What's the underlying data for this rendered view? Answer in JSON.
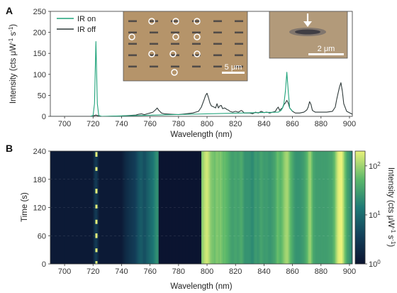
{
  "chart_data": [
    {
      "panel": "A",
      "type": "line",
      "xlabel": "Wavelength (nm)",
      "ylabel_main": "Intensity (cts μW",
      "ylabel_sup1": "-1",
      "ylabel_mid": " s",
      "ylabel_sup2": "-1",
      "ylabel_end": ")",
      "xlim": [
        690,
        902
      ],
      "ylim": [
        0,
        250
      ],
      "xticks": [
        700,
        720,
        740,
        760,
        780,
        800,
        820,
        840,
        860,
        880,
        900
      ],
      "yticks": [
        0,
        50,
        100,
        150,
        200,
        250
      ],
      "legend": {
        "position": "top-left",
        "entries": [
          "IR on",
          "IR off"
        ]
      },
      "colors": {
        "ir_on": "#1fa37a",
        "ir_off": "#2f3a3a"
      },
      "series": [
        {
          "name": "IR off",
          "x": [
            690,
            700,
            710,
            718,
            720,
            721,
            722,
            723,
            724,
            726,
            730,
            740,
            750,
            752,
            754,
            756,
            758,
            760,
            762,
            764,
            765,
            766,
            768,
            770,
            775,
            780,
            785,
            790,
            794,
            796,
            798,
            799,
            800,
            801,
            802,
            803,
            805,
            806,
            807,
            808,
            809,
            810,
            811,
            812,
            813,
            814,
            815,
            816,
            818,
            820,
            822,
            824,
            825,
            826,
            828,
            830,
            832,
            834,
            836,
            838,
            840,
            842,
            844,
            846,
            848,
            849,
            850,
            851,
            852,
            853,
            854,
            855,
            856,
            857,
            858,
            860,
            862,
            865,
            868,
            870,
            871,
            872,
            873,
            874,
            876,
            880,
            884,
            888,
            890,
            891,
            892,
            893,
            894,
            895,
            896,
            898,
            902
          ],
          "y": [
            0,
            0,
            0,
            0,
            1,
            2,
            3,
            2,
            1,
            0,
            0,
            1,
            3,
            5,
            6,
            4,
            6,
            8,
            10,
            16,
            20,
            15,
            8,
            6,
            5,
            4,
            6,
            8,
            12,
            22,
            40,
            50,
            55,
            45,
            32,
            25,
            22,
            20,
            30,
            20,
            25,
            26,
            18,
            20,
            19,
            16,
            15,
            12,
            10,
            12,
            10,
            14,
            12,
            8,
            8,
            8,
            6,
            10,
            8,
            12,
            9,
            10,
            8,
            10,
            12,
            18,
            22,
            14,
            18,
            20,
            28,
            32,
            38,
            32,
            20,
            12,
            8,
            8,
            10,
            15,
            22,
            35,
            28,
            14,
            10,
            10,
            10,
            12,
            22,
            40,
            55,
            70,
            80,
            60,
            30,
            12,
            5
          ]
        },
        {
          "name": "IR on",
          "x": [
            718,
            720,
            721,
            722,
            723,
            724,
            726,
            850,
            852,
            853,
            854,
            855,
            856,
            857,
            858,
            860
          ],
          "y": [
            0,
            2,
            30,
            178,
            30,
            2,
            0,
            10,
            14,
            20,
            30,
            60,
            105,
            60,
            20,
            12
          ]
        }
      ],
      "insets": [
        {
          "name": "array-image",
          "scale_bar_label": "5 μm"
        },
        {
          "name": "single-emitter-image",
          "scale_bar_label": "2 μm"
        }
      ]
    },
    {
      "panel": "B",
      "type": "heatmap",
      "xlabel": "Wavelength (nm)",
      "ylabel": "Time (s)",
      "xlim": [
        690,
        902
      ],
      "ylim": [
        0,
        240
      ],
      "xticks": [
        700,
        720,
        740,
        760,
        780,
        800,
        820,
        840,
        860,
        880,
        900
      ],
      "yticks": [
        0,
        60,
        120,
        180,
        240
      ],
      "colorbar": {
        "label_main": "Intensity (cts μW",
        "label_sup1": "-1",
        "label_mid": " s",
        "label_sup2": "-1",
        "label_end": ")",
        "scale": "log",
        "range": [
          1,
          200
        ],
        "tick_base": [
          "10",
          "10",
          "10"
        ],
        "tick_exp": [
          "0",
          "1",
          "2"
        ],
        "tick_values": [
          1,
          10,
          100
        ]
      },
      "gap_nm": [
        766,
        796
      ]
    }
  ]
}
